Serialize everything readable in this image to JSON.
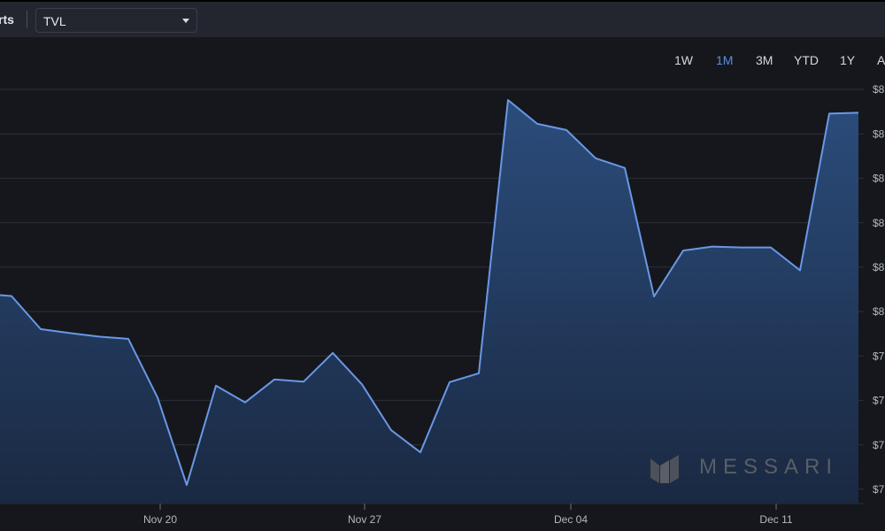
{
  "toolbar": {
    "section_label": "rts",
    "metric_select": {
      "value": "TVL"
    }
  },
  "ranges": [
    {
      "label": "1W",
      "active": false
    },
    {
      "label": "1M",
      "active": true
    },
    {
      "label": "3M",
      "active": false
    },
    {
      "label": "YTD",
      "active": false
    },
    {
      "label": "1Y",
      "active": false
    },
    {
      "label": "A",
      "active": false
    }
  ],
  "watermark": {
    "text": "MESSARI"
  },
  "colors": {
    "background": "#15171d",
    "toolbar": "#23262e",
    "line": "#6a98e6",
    "fill_top": "#2b4c7b",
    "fill_bottom": "#1a2942",
    "active_range": "#5d8fe0",
    "grid": "#2d3038"
  },
  "chart_data": {
    "type": "area",
    "title": "",
    "xlabel": "",
    "ylabel": "",
    "x_tick_labels": [
      "Nov 20",
      "Nov 27",
      "Dec 04",
      "Dec 11"
    ],
    "y_tick_labels": [
      "$8",
      "$8",
      "$8",
      "$8",
      "$8",
      "$8",
      "$7",
      "$7",
      "$7",
      "$7"
    ],
    "ylim": [
      0,
      9
    ],
    "series": [
      {
        "values": [
          4.35,
          4.3,
          3.55,
          3.46,
          3.38,
          3.33,
          2.0,
          0.02,
          2.27,
          1.89,
          2.41,
          2.36,
          3.01,
          2.3,
          1.26,
          0.76,
          2.35,
          2.55,
          8.74,
          8.2,
          8.06,
          7.42,
          7.2,
          4.29,
          5.33,
          5.42,
          5.4,
          5.4,
          4.88,
          8.43,
          8.45
        ]
      }
    ]
  }
}
